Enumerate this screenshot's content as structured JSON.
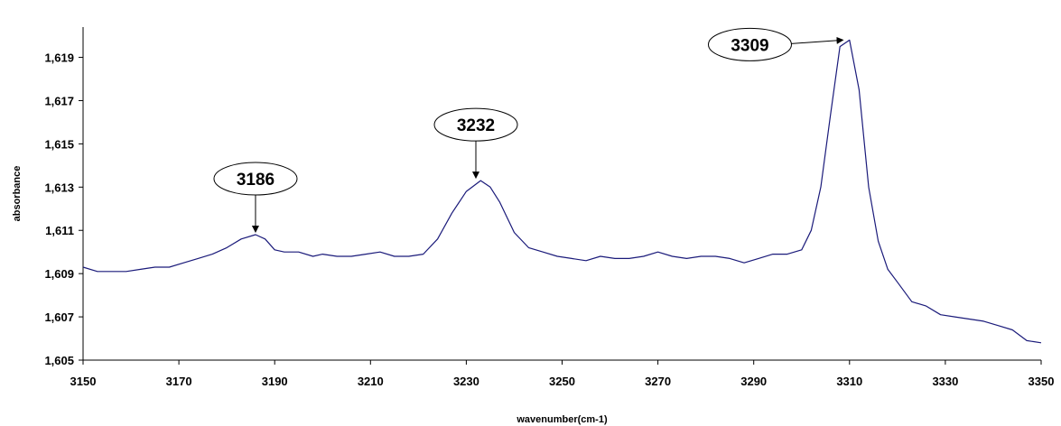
{
  "chart_data": {
    "type": "line",
    "xlabel": "wavenumber(cm-1)",
    "ylabel": "absorbance",
    "xlim": [
      3150,
      3350
    ],
    "ylim": [
      1.605,
      1.62
    ],
    "x_ticks": [
      3150,
      3170,
      3190,
      3210,
      3230,
      3250,
      3270,
      3290,
      3310,
      3330,
      3350
    ],
    "x_tick_labels": [
      "3150",
      "3170",
      "3190",
      "3210",
      "3230",
      "3250",
      "3270",
      "3290",
      "3310",
      "3330",
      "3350"
    ],
    "y_ticks": [
      1.605,
      1.607,
      1.609,
      1.611,
      1.613,
      1.615,
      1.617,
      1.619
    ],
    "y_tick_labels": [
      "1,605",
      "1,607",
      "1,609",
      "1,611",
      "1,613",
      "1,615",
      "1,617",
      "1,619"
    ],
    "grid": false,
    "line_color": "#1a1a7a",
    "series": [
      {
        "x": [
          3150,
          3153,
          3156,
          3159,
          3162,
          3165,
          3168,
          3171,
          3174,
          3177,
          3180,
          3183,
          3186,
          3188,
          3190,
          3192,
          3195,
          3198,
          3200,
          3203,
          3206,
          3209,
          3212,
          3215,
          3218,
          3221,
          3224,
          3227,
          3230,
          3233,
          3235,
          3237,
          3240,
          3243,
          3246,
          3249,
          3252,
          3255,
          3258,
          3261,
          3264,
          3267,
          3270,
          3273,
          3276,
          3279,
          3282,
          3285,
          3288,
          3291,
          3294,
          3297,
          3300,
          3302,
          3304,
          3306,
          3308,
          3310,
          3312,
          3314,
          3316,
          3318,
          3320,
          3323,
          3326,
          3329,
          3332,
          3335,
          3338,
          3341,
          3344,
          3347,
          3350
        ],
        "y": [
          1.6093,
          1.6091,
          1.6091,
          1.6091,
          1.6092,
          1.6093,
          1.6093,
          1.6095,
          1.6097,
          1.6099,
          1.6102,
          1.6106,
          1.6108,
          1.6106,
          1.6101,
          1.61,
          1.61,
          1.6098,
          1.6099,
          1.6098,
          1.6098,
          1.6099,
          1.61,
          1.6098,
          1.6098,
          1.6099,
          1.6106,
          1.6118,
          1.6128,
          1.6133,
          1.613,
          1.6123,
          1.6109,
          1.6102,
          1.61,
          1.6098,
          1.6097,
          1.6096,
          1.6098,
          1.6097,
          1.6097,
          1.6098,
          1.61,
          1.6098,
          1.6097,
          1.6098,
          1.6098,
          1.6097,
          1.6095,
          1.6097,
          1.6099,
          1.6099,
          1.6101,
          1.611,
          1.613,
          1.6163,
          1.6195,
          1.6198,
          1.6175,
          1.613,
          1.6105,
          1.6092,
          1.6086,
          1.6077,
          1.6075,
          1.6071,
          1.607,
          1.6069,
          1.6068,
          1.6066,
          1.6064,
          1.6059,
          1.6058
        ]
      }
    ],
    "annotations": [
      {
        "text": "3186",
        "x": 3186,
        "y": 1.6108
      },
      {
        "text": "3232",
        "x": 3232,
        "y": 1.6133
      },
      {
        "text": "3309",
        "x": 3309,
        "y": 1.6198
      }
    ]
  }
}
